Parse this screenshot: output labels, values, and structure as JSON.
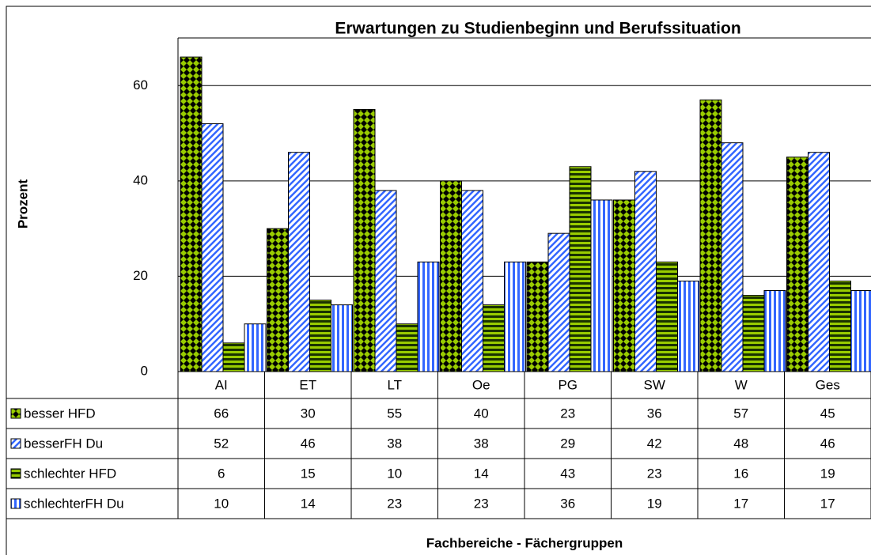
{
  "chart_data": {
    "type": "bar",
    "title": "Erwartungen zu Studienbeginn und Berufssituation",
    "y_label": "Prozent",
    "x_label": "Fachbereiche  -  Fächergruppen",
    "categories": [
      "AI",
      "ET",
      "LT",
      "Oe",
      "PG",
      "SW",
      "W",
      "Ges"
    ],
    "series": [
      {
        "name": "besser HFD",
        "color": "#99cc00",
        "values": [
          66,
          30,
          55,
          40,
          23,
          36,
          57,
          45
        ]
      },
      {
        "name": "besserFH Du",
        "color": "#3366ff",
        "values": [
          52,
          46,
          38,
          38,
          29,
          42,
          48,
          46
        ]
      },
      {
        "name": "schlechter HFD",
        "color": "#99cc00",
        "values": [
          6,
          15,
          10,
          14,
          43,
          23,
          16,
          19
        ]
      },
      {
        "name": "schlechterFH Du",
        "color": "#3366ff",
        "values": [
          10,
          14,
          23,
          23,
          36,
          19,
          17,
          17
        ]
      }
    ],
    "ylim": [
      0,
      70
    ],
    "yticks": [
      0,
      20,
      40,
      60
    ],
    "grid": true
  }
}
